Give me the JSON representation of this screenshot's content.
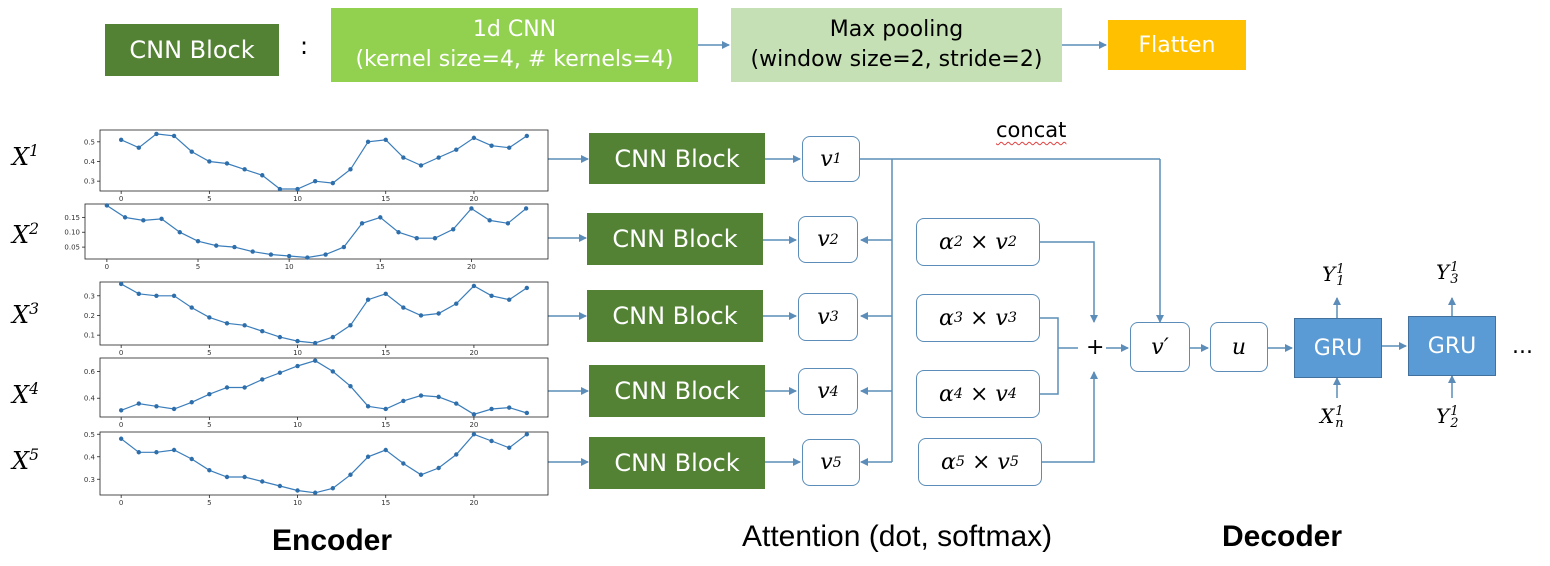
{
  "legend": {
    "cnn_block": "CNN Block",
    "colon": ":",
    "conv_line1": "1d CNN",
    "conv_line2": "(kernel size=4, # kernels=4)",
    "pool_line1": "Max pooling",
    "pool_line2": "(window size=2, stride=2)",
    "flatten": "Flatten"
  },
  "inputs": [
    {
      "base": "X",
      "sup": "1"
    },
    {
      "base": "X",
      "sup": "2"
    },
    {
      "base": "X",
      "sup": "3"
    },
    {
      "base": "X",
      "sup": "4"
    },
    {
      "base": "X",
      "sup": "5"
    }
  ],
  "cnn_label": "CNN Block",
  "vectors": [
    {
      "base": "v",
      "sub": "1"
    },
    {
      "base": "v",
      "sub": "2"
    },
    {
      "base": "v",
      "sub": "3"
    },
    {
      "base": "v",
      "sub": "4"
    },
    {
      "base": "v",
      "sub": "5"
    }
  ],
  "weighted": [
    {
      "alpha": "α",
      "sub": "2",
      "times": "×",
      "v": "v",
      "vsub": "2"
    },
    {
      "alpha": "α",
      "sub": "3",
      "times": "×",
      "v": "v",
      "vsub": "3"
    },
    {
      "alpha": "α",
      "sub": "4",
      "times": "×",
      "v": "v",
      "vsub": "4"
    },
    {
      "alpha": "α",
      "sub": "5",
      "times": "×",
      "v": "v",
      "vsub": "5"
    }
  ],
  "concat": "concat",
  "plus": "+",
  "v_prime": "v′",
  "u": "u",
  "gru": "GRU",
  "ellipsis": "...",
  "decoder_io": {
    "y_top_1": {
      "base": "Y",
      "sub": "1",
      "sup": "1"
    },
    "y_top_2": {
      "base": "Y",
      "sub": "3",
      "sup": "1"
    },
    "x_bottom": {
      "base": "X",
      "sub": "n",
      "sup": "1"
    },
    "y_bottom": {
      "base": "Y",
      "sub": "2",
      "sup": "1"
    }
  },
  "sections": {
    "encoder": "Encoder",
    "attention": "Attention (dot, softmax)",
    "decoder": "Decoder"
  },
  "colors": {
    "cnn_dark_green": "#548235",
    "light_green": "#92d050",
    "pale_green": "#c5e0b4",
    "orange": "#ffc000",
    "gru_blue": "#5b9bd5",
    "line_blue": "#5b8db8"
  },
  "chart_data": [
    {
      "type": "line",
      "x": [
        0,
        1,
        2,
        3,
        4,
        5,
        6,
        7,
        8,
        9,
        10,
        11,
        12,
        13,
        14,
        15,
        16,
        17,
        18,
        19,
        20,
        21,
        22,
        23
      ],
      "values": [
        0.51,
        0.47,
        0.54,
        0.53,
        0.45,
        0.4,
        0.39,
        0.36,
        0.33,
        0.26,
        0.26,
        0.3,
        0.29,
        0.36,
        0.5,
        0.51,
        0.42,
        0.38,
        0.42,
        0.46,
        0.52,
        0.48,
        0.47,
        0.53
      ],
      "xticks": [
        "0",
        "5",
        "10",
        "15",
        "20"
      ],
      "yticks": [
        "0.3",
        "0.4",
        "0.5"
      ],
      "ylim": [
        0.25,
        0.56
      ]
    },
    {
      "type": "line",
      "x": [
        0,
        1,
        2,
        3,
        4,
        5,
        6,
        7,
        8,
        9,
        10,
        11,
        12,
        13,
        14,
        15,
        16,
        17,
        18,
        19,
        20,
        21,
        22,
        23
      ],
      "values": [
        0.19,
        0.15,
        0.14,
        0.145,
        0.1,
        0.07,
        0.055,
        0.05,
        0.035,
        0.025,
        0.02,
        0.015,
        0.025,
        0.05,
        0.13,
        0.15,
        0.1,
        0.08,
        0.08,
        0.11,
        0.18,
        0.14,
        0.13,
        0.18
      ],
      "xticks": [
        "0",
        "5",
        "10",
        "15",
        "20"
      ],
      "yticks": [
        "0.05",
        "0.10",
        "0.15"
      ],
      "ylim": [
        0.01,
        0.195
      ]
    },
    {
      "type": "line",
      "x": [
        0,
        1,
        2,
        3,
        4,
        5,
        6,
        7,
        8,
        9,
        10,
        11,
        12,
        13,
        14,
        15,
        16,
        17,
        18,
        19,
        20,
        21,
        22,
        23
      ],
      "values": [
        0.36,
        0.31,
        0.3,
        0.3,
        0.24,
        0.19,
        0.16,
        0.15,
        0.12,
        0.09,
        0.07,
        0.06,
        0.09,
        0.15,
        0.28,
        0.31,
        0.24,
        0.2,
        0.21,
        0.26,
        0.35,
        0.3,
        0.28,
        0.34
      ],
      "xticks": [
        "0",
        "5",
        "10",
        "15",
        "20"
      ],
      "yticks": [
        "0.1",
        "0.2",
        "0.3"
      ],
      "ylim": [
        0.05,
        0.37
      ]
    },
    {
      "type": "line",
      "x": [
        0,
        1,
        2,
        3,
        4,
        5,
        6,
        7,
        8,
        9,
        10,
        11,
        12,
        13,
        14,
        15,
        16,
        17,
        18,
        19,
        20,
        21,
        22,
        23
      ],
      "values": [
        0.31,
        0.36,
        0.34,
        0.32,
        0.37,
        0.43,
        0.48,
        0.48,
        0.54,
        0.59,
        0.64,
        0.68,
        0.6,
        0.49,
        0.34,
        0.32,
        0.38,
        0.42,
        0.41,
        0.36,
        0.28,
        0.32,
        0.33,
        0.29
      ],
      "xticks": [
        "0",
        "5",
        "10",
        "15",
        "20"
      ],
      "yticks": [
        "0.4",
        "0.6"
      ],
      "ylim": [
        0.26,
        0.7
      ]
    },
    {
      "type": "line",
      "x": [
        0,
        1,
        2,
        3,
        4,
        5,
        6,
        7,
        8,
        9,
        10,
        11,
        12,
        13,
        14,
        15,
        16,
        17,
        18,
        19,
        20,
        21,
        22,
        23
      ],
      "values": [
        0.48,
        0.42,
        0.42,
        0.43,
        0.39,
        0.34,
        0.31,
        0.31,
        0.29,
        0.27,
        0.25,
        0.24,
        0.26,
        0.32,
        0.4,
        0.43,
        0.37,
        0.32,
        0.35,
        0.41,
        0.5,
        0.47,
        0.44,
        0.5
      ],
      "xticks": [
        "0",
        "5",
        "10",
        "15",
        "20"
      ],
      "yticks": [
        "0.3",
        "0.4",
        "0.5"
      ],
      "ylim": [
        0.23,
        0.51
      ]
    }
  ]
}
